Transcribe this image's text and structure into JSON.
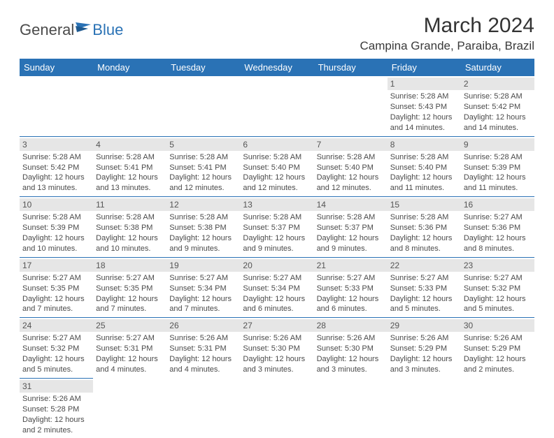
{
  "logo": {
    "textA": "General",
    "textB": "Blue"
  },
  "title": "March 2024",
  "location": "Campina Grande, Paraiba, Brazil",
  "colors": {
    "headerBar": "#2a72b5",
    "dayNumBg": "#e6e6e6",
    "ruleLine": "#2a72b5",
    "bodyText": "#4a4a4a"
  },
  "weekdays": [
    "Sunday",
    "Monday",
    "Tuesday",
    "Wednesday",
    "Thursday",
    "Friday",
    "Saturday"
  ],
  "layout": {
    "firstDayOffset": 5,
    "daysInMonth": 31,
    "cols": 7
  },
  "days": [
    {
      "n": "1",
      "sr": "Sunrise: 5:28 AM",
      "ss": "Sunset: 5:43 PM",
      "d1": "Daylight: 12 hours",
      "d2": "and 14 minutes."
    },
    {
      "n": "2",
      "sr": "Sunrise: 5:28 AM",
      "ss": "Sunset: 5:42 PM",
      "d1": "Daylight: 12 hours",
      "d2": "and 14 minutes."
    },
    {
      "n": "3",
      "sr": "Sunrise: 5:28 AM",
      "ss": "Sunset: 5:42 PM",
      "d1": "Daylight: 12 hours",
      "d2": "and 13 minutes."
    },
    {
      "n": "4",
      "sr": "Sunrise: 5:28 AM",
      "ss": "Sunset: 5:41 PM",
      "d1": "Daylight: 12 hours",
      "d2": "and 13 minutes."
    },
    {
      "n": "5",
      "sr": "Sunrise: 5:28 AM",
      "ss": "Sunset: 5:41 PM",
      "d1": "Daylight: 12 hours",
      "d2": "and 12 minutes."
    },
    {
      "n": "6",
      "sr": "Sunrise: 5:28 AM",
      "ss": "Sunset: 5:40 PM",
      "d1": "Daylight: 12 hours",
      "d2": "and 12 minutes."
    },
    {
      "n": "7",
      "sr": "Sunrise: 5:28 AM",
      "ss": "Sunset: 5:40 PM",
      "d1": "Daylight: 12 hours",
      "d2": "and 12 minutes."
    },
    {
      "n": "8",
      "sr": "Sunrise: 5:28 AM",
      "ss": "Sunset: 5:40 PM",
      "d1": "Daylight: 12 hours",
      "d2": "and 11 minutes."
    },
    {
      "n": "9",
      "sr": "Sunrise: 5:28 AM",
      "ss": "Sunset: 5:39 PM",
      "d1": "Daylight: 12 hours",
      "d2": "and 11 minutes."
    },
    {
      "n": "10",
      "sr": "Sunrise: 5:28 AM",
      "ss": "Sunset: 5:39 PM",
      "d1": "Daylight: 12 hours",
      "d2": "and 10 minutes."
    },
    {
      "n": "11",
      "sr": "Sunrise: 5:28 AM",
      "ss": "Sunset: 5:38 PM",
      "d1": "Daylight: 12 hours",
      "d2": "and 10 minutes."
    },
    {
      "n": "12",
      "sr": "Sunrise: 5:28 AM",
      "ss": "Sunset: 5:38 PM",
      "d1": "Daylight: 12 hours",
      "d2": "and 9 minutes."
    },
    {
      "n": "13",
      "sr": "Sunrise: 5:28 AM",
      "ss": "Sunset: 5:37 PM",
      "d1": "Daylight: 12 hours",
      "d2": "and 9 minutes."
    },
    {
      "n": "14",
      "sr": "Sunrise: 5:28 AM",
      "ss": "Sunset: 5:37 PM",
      "d1": "Daylight: 12 hours",
      "d2": "and 9 minutes."
    },
    {
      "n": "15",
      "sr": "Sunrise: 5:28 AM",
      "ss": "Sunset: 5:36 PM",
      "d1": "Daylight: 12 hours",
      "d2": "and 8 minutes."
    },
    {
      "n": "16",
      "sr": "Sunrise: 5:27 AM",
      "ss": "Sunset: 5:36 PM",
      "d1": "Daylight: 12 hours",
      "d2": "and 8 minutes."
    },
    {
      "n": "17",
      "sr": "Sunrise: 5:27 AM",
      "ss": "Sunset: 5:35 PM",
      "d1": "Daylight: 12 hours",
      "d2": "and 7 minutes."
    },
    {
      "n": "18",
      "sr": "Sunrise: 5:27 AM",
      "ss": "Sunset: 5:35 PM",
      "d1": "Daylight: 12 hours",
      "d2": "and 7 minutes."
    },
    {
      "n": "19",
      "sr": "Sunrise: 5:27 AM",
      "ss": "Sunset: 5:34 PM",
      "d1": "Daylight: 12 hours",
      "d2": "and 7 minutes."
    },
    {
      "n": "20",
      "sr": "Sunrise: 5:27 AM",
      "ss": "Sunset: 5:34 PM",
      "d1": "Daylight: 12 hours",
      "d2": "and 6 minutes."
    },
    {
      "n": "21",
      "sr": "Sunrise: 5:27 AM",
      "ss": "Sunset: 5:33 PM",
      "d1": "Daylight: 12 hours",
      "d2": "and 6 minutes."
    },
    {
      "n": "22",
      "sr": "Sunrise: 5:27 AM",
      "ss": "Sunset: 5:33 PM",
      "d1": "Daylight: 12 hours",
      "d2": "and 5 minutes."
    },
    {
      "n": "23",
      "sr": "Sunrise: 5:27 AM",
      "ss": "Sunset: 5:32 PM",
      "d1": "Daylight: 12 hours",
      "d2": "and 5 minutes."
    },
    {
      "n": "24",
      "sr": "Sunrise: 5:27 AM",
      "ss": "Sunset: 5:32 PM",
      "d1": "Daylight: 12 hours",
      "d2": "and 5 minutes."
    },
    {
      "n": "25",
      "sr": "Sunrise: 5:27 AM",
      "ss": "Sunset: 5:31 PM",
      "d1": "Daylight: 12 hours",
      "d2": "and 4 minutes."
    },
    {
      "n": "26",
      "sr": "Sunrise: 5:26 AM",
      "ss": "Sunset: 5:31 PM",
      "d1": "Daylight: 12 hours",
      "d2": "and 4 minutes."
    },
    {
      "n": "27",
      "sr": "Sunrise: 5:26 AM",
      "ss": "Sunset: 5:30 PM",
      "d1": "Daylight: 12 hours",
      "d2": "and 3 minutes."
    },
    {
      "n": "28",
      "sr": "Sunrise: 5:26 AM",
      "ss": "Sunset: 5:30 PM",
      "d1": "Daylight: 12 hours",
      "d2": "and 3 minutes."
    },
    {
      "n": "29",
      "sr": "Sunrise: 5:26 AM",
      "ss": "Sunset: 5:29 PM",
      "d1": "Daylight: 12 hours",
      "d2": "and 3 minutes."
    },
    {
      "n": "30",
      "sr": "Sunrise: 5:26 AM",
      "ss": "Sunset: 5:29 PM",
      "d1": "Daylight: 12 hours",
      "d2": "and 2 minutes."
    },
    {
      "n": "31",
      "sr": "Sunrise: 5:26 AM",
      "ss": "Sunset: 5:28 PM",
      "d1": "Daylight: 12 hours",
      "d2": "and 2 minutes."
    }
  ]
}
